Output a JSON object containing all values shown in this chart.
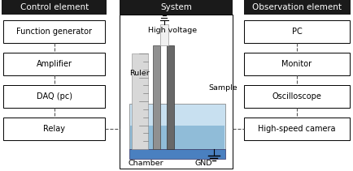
{
  "title_left": "Control element",
  "title_center": "System",
  "title_right": "Observation element",
  "left_boxes": [
    "Function generator",
    "Amplifier",
    "DAQ (pc)",
    "Relay"
  ],
  "right_boxes": [
    "PC",
    "Monitor",
    "Oscilloscope",
    "High-speed camera"
  ],
  "center_labels": {
    "high_voltage": "High voltage",
    "ruler": "Ruler",
    "sample": "Sample",
    "chamber": "Chamber",
    "gnd": "GND"
  },
  "header_bg": "#1a1a1a",
  "header_fg": "#ffffff",
  "box_bg": "#ffffff",
  "box_border": "#000000",
  "line_color": "#555555",
  "chamber_fill": "#b8d8ee",
  "chamber_base": "#4a80c0",
  "ruler_fill": "#d8d8d8",
  "sample_fill": "#686868",
  "electrode_fill": "#f0f0f0",
  "bg_color": "#ffffff"
}
